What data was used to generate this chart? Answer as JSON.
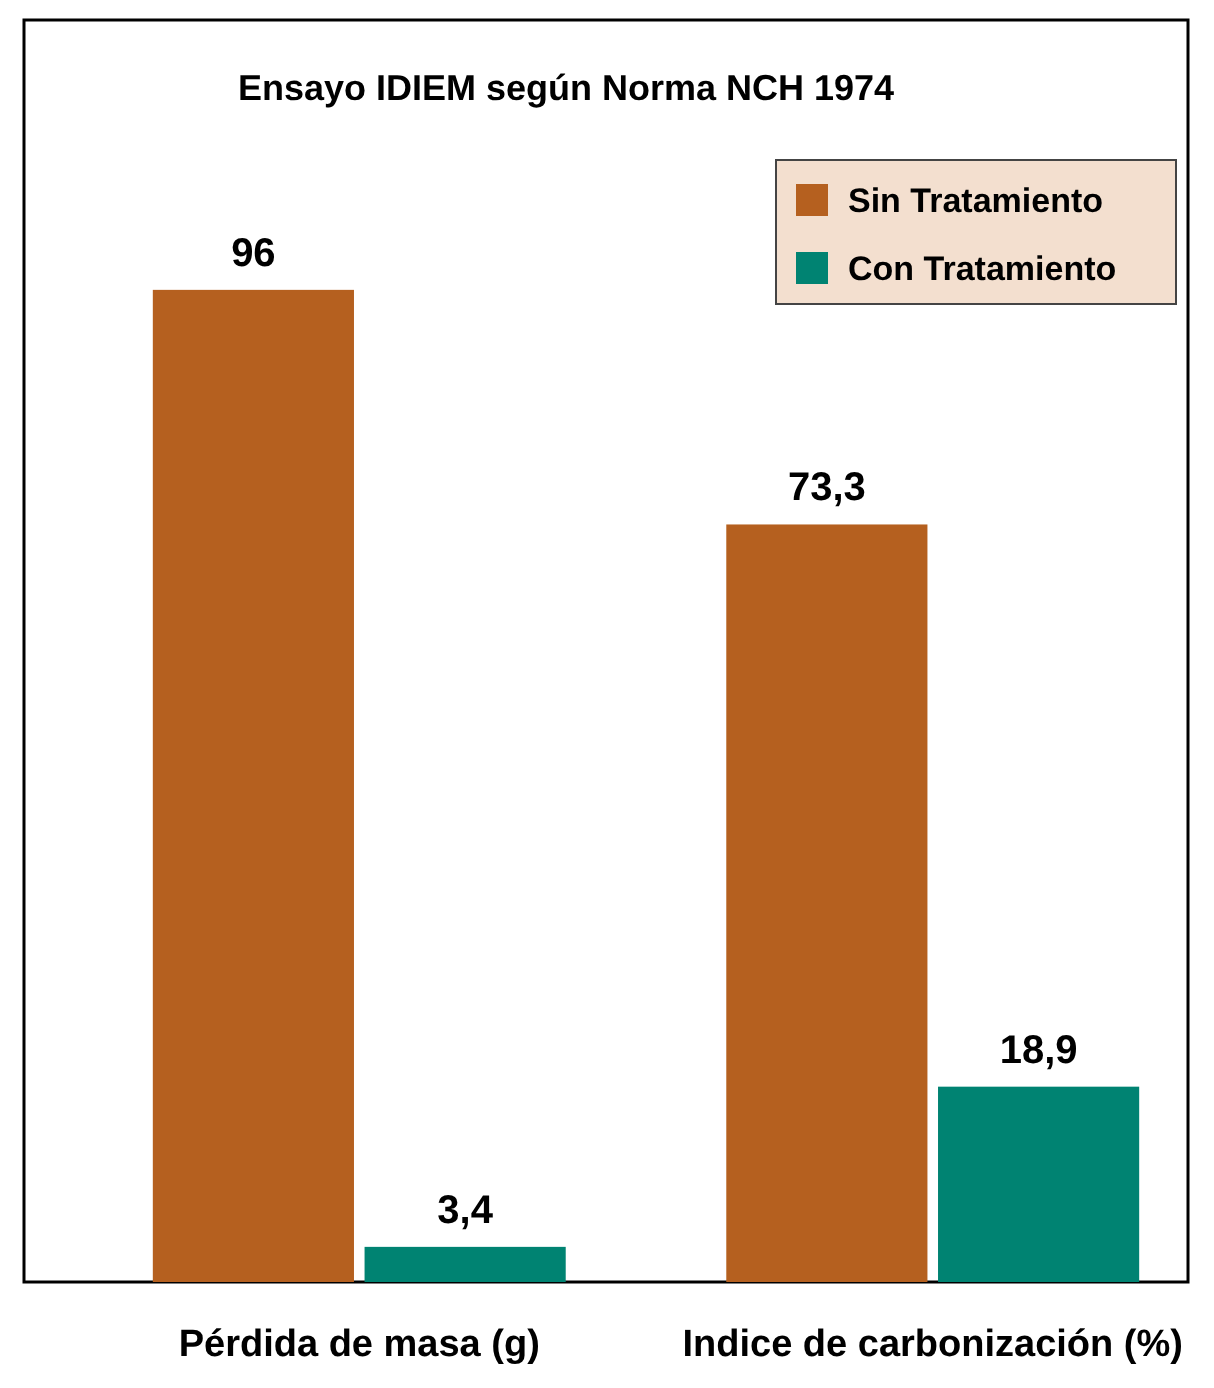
{
  "chart_data": {
    "type": "bar",
    "title": "Ensayo IDIEM según Norma NCH 1974",
    "categories": [
      "Pérdida de masa (g)",
      "Indice de carbonización (%)"
    ],
    "series": [
      {
        "name": "Sin Tratamiento",
        "color": "#b5601f",
        "values": [
          96,
          73.3
        ],
        "value_labels": [
          "96",
          "73,3"
        ]
      },
      {
        "name": "Con Tratamiento",
        "color": "#008372",
        "values": [
          3.4,
          18.9
        ],
        "value_labels": [
          "3,4",
          "18,9"
        ]
      }
    ],
    "legend": "top right"
  }
}
